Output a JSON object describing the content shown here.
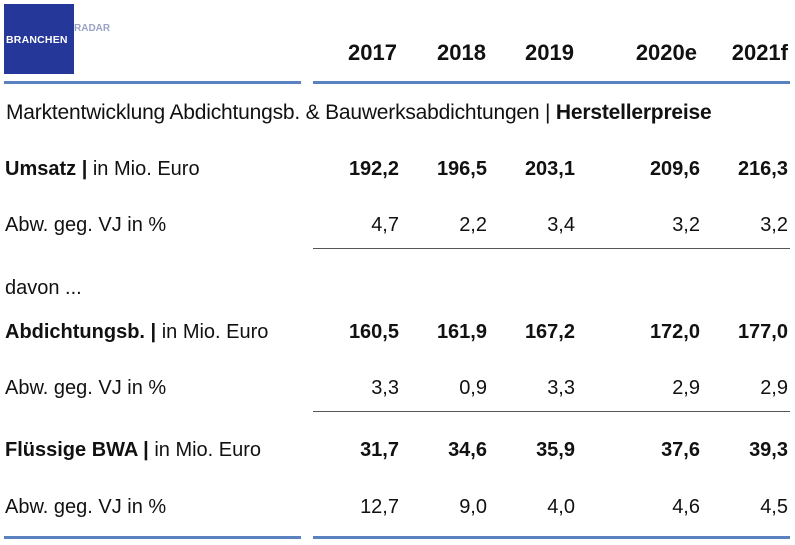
{
  "logo": {
    "part1": "BRANCHEN",
    "part2": "RADAR"
  },
  "years": [
    "2017",
    "2018",
    "2019",
    "2020e",
    "2021f"
  ],
  "subtitle": {
    "main": "Marktentwicklung Abdichtungsb. & Bauwerksabdichtungen | ",
    "bold": "Herstellerpreise"
  },
  "davon_label": "davon ...",
  "rows": {
    "umsatz": {
      "label_bold": "Umsatz |",
      "label_rest": " in Mio. Euro",
      "values": [
        "192,2",
        "196,5",
        "203,1",
        "209,6",
        "216,3"
      ]
    },
    "umsatz_abw": {
      "label": "Abw. geg. VJ in %",
      "values": [
        "4,7",
        "2,2",
        "3,4",
        "3,2",
        "3,2"
      ]
    },
    "abdicht": {
      "label_bold": "Abdichtungsb. |",
      "label_rest": " in Mio. Euro",
      "values": [
        "160,5",
        "161,9",
        "167,2",
        "172,0",
        "177,0"
      ]
    },
    "abdicht_abw": {
      "label": "Abw. geg. VJ in %",
      "values": [
        "3,3",
        "0,9",
        "3,3",
        "2,9",
        "2,9"
      ]
    },
    "bwa": {
      "label_bold": "Flüssige BWA |",
      "label_rest": " in Mio. Euro",
      "values": [
        "31,7",
        "34,6",
        "35,9",
        "37,6",
        "39,3"
      ]
    },
    "bwa_abw": {
      "label": "Abw. geg. VJ in %",
      "values": [
        "12,7",
        "9,0",
        "4,0",
        "4,6",
        "4,5"
      ]
    }
  },
  "colors": {
    "logo_bg": "#26379a",
    "rule": "#5b82c0"
  }
}
